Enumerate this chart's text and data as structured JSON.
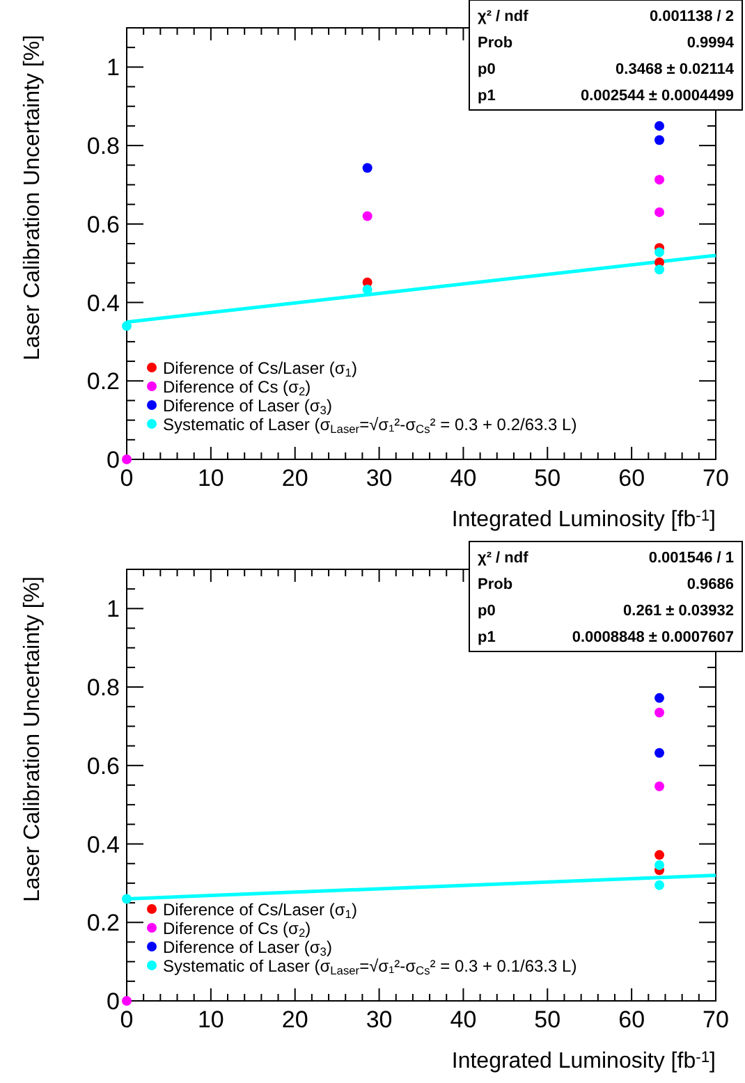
{
  "chart_data": [
    {
      "type": "scatter",
      "xlabel": "Integrated Luminosity [fb$^{-1}$]",
      "ylabel": "Laser Calibration Uncertainty [%]",
      "xlim": [
        0,
        70
      ],
      "ylim": [
        0,
        1.1
      ],
      "xticks": [
        0,
        {
          "value": 2,
          "label": null
        },
        {
          "value": 4,
          "label": null
        },
        {
          "value": 6,
          "label": null
        },
        {
          "value": 8,
          "label": null
        },
        10,
        {
          "value": 12,
          "label": null
        },
        {
          "value": 14,
          "label": null
        },
        {
          "value": 16,
          "label": null
        },
        {
          "value": 18,
          "label": null
        },
        20,
        {
          "value": 22,
          "label": null
        },
        {
          "value": 24,
          "label": null
        },
        {
          "value": 26,
          "label": null
        },
        {
          "value": 28,
          "label": null
        },
        30,
        {
          "value": 32,
          "label": null
        },
        {
          "value": 34,
          "label": null
        },
        {
          "value": 36,
          "label": null
        },
        {
          "value": 38,
          "label": null
        },
        40,
        {
          "value": 42,
          "label": null
        },
        {
          "value": 44,
          "label": null
        },
        {
          "value": 46,
          "label": null
        },
        {
          "value": 48,
          "label": null
        },
        50,
        {
          "value": 52,
          "label": null
        },
        {
          "value": 54,
          "label": null
        },
        {
          "value": 56,
          "label": null
        },
        {
          "value": 58,
          "label": null
        },
        60,
        {
          "value": 62,
          "label": null
        },
        {
          "value": 64,
          "label": null
        },
        {
          "value": 66,
          "label": null
        },
        {
          "value": 68,
          "label": null
        },
        70
      ],
      "yticks": [
        0,
        {
          "value": 0.05,
          "label": null
        },
        {
          "value": 0.1,
          "label": null
        },
        {
          "value": 0.15,
          "label": null
        },
        0.2,
        {
          "value": 0.25,
          "label": null
        },
        {
          "value": 0.3,
          "label": null
        },
        {
          "value": 0.35,
          "label": null
        },
        0.4,
        {
          "value": 0.45,
          "label": null
        },
        {
          "value": 0.5,
          "label": null
        },
        {
          "value": 0.55,
          "label": null
        },
        0.6,
        {
          "value": 0.65,
          "label": null
        },
        {
          "value": 0.7,
          "label": null
        },
        {
          "value": 0.75,
          "label": null
        },
        0.8,
        {
          "value": 0.85,
          "label": null
        },
        {
          "value": 0.9,
          "label": null
        },
        {
          "value": 0.95,
          "label": null
        },
        1,
        {
          "value": 1.05,
          "label": null
        }
      ],
      "grid": false,
      "legend": "bottom left",
      "marker": "circle",
      "series": [
        {
          "name": "Diference of Cs/Laser (σ$_{1}$)",
          "color": "#ff0000",
          "x": [
            28.6,
            63.3,
            63.3
          ],
          "values": [
            0.451,
            0.539,
            0.502
          ]
        },
        {
          "name": "Diference of Cs (σ$_{2}$)",
          "color": "#ff00ff",
          "x": [
            0,
            28.6,
            63.3,
            63.3
          ],
          "values": [
            0,
            0.62,
            0.713,
            0.63
          ]
        },
        {
          "name": "Diference of Laser (σ$_{3}$)",
          "color": "#0000ff",
          "x": [
            28.6,
            63.3,
            63.3
          ],
          "values": [
            0.743,
            0.85,
            0.814
          ]
        },
        {
          "name": "Systematic of Laser (σ$_{Laser}$=√σ₁²-σ$_{Cs}$² = 0.3 + 0.2/63.3 L)",
          "color": "#00ffff",
          "x": [
            0,
            28.6,
            63.3,
            63.3
          ],
          "values": [
            0.34,
            0.433,
            0.528,
            0.484
          ]
        },
        {
          "type": "line",
          "marker": "none",
          "color": "#00ffff",
          "x": [
            0,
            70
          ],
          "values": [
            0.35,
            0.52
          ]
        }
      ],
      "annotations": [
        "χ² / ndf",
        "0.001138 / 2",
        "Prob",
        "0.9994",
        "p0",
        "0.3468 ± 0.02114",
        "p1",
        "0.002544 ± 0.0004499"
      ]
    },
    {
      "type": "scatter",
      "xlabel": "Integrated Luminosity [fb$^{-1}$]",
      "ylabel": "Laser Calibration Uncertainty [%]",
      "xlim": [
        0,
        70
      ],
      "ylim": [
        0,
        1.1
      ],
      "xticks": [
        0,
        {
          "value": 2,
          "label": null
        },
        {
          "value": 4,
          "label": null
        },
        {
          "value": 6,
          "label": null
        },
        {
          "value": 8,
          "label": null
        },
        10,
        {
          "value": 12,
          "label": null
        },
        {
          "value": 14,
          "label": null
        },
        {
          "value": 16,
          "label": null
        },
        {
          "value": 18,
          "label": null
        },
        20,
        {
          "value": 22,
          "label": null
        },
        {
          "value": 24,
          "label": null
        },
        {
          "value": 26,
          "label": null
        },
        {
          "value": 28,
          "label": null
        },
        30,
        {
          "value": 32,
          "label": null
        },
        {
          "value": 34,
          "label": null
        },
        {
          "value": 36,
          "label": null
        },
        {
          "value": 38,
          "label": null
        },
        40,
        {
          "value": 42,
          "label": null
        },
        {
          "value": 44,
          "label": null
        },
        {
          "value": 46,
          "label": null
        },
        {
          "value": 48,
          "label": null
        },
        50,
        {
          "value": 52,
          "label": null
        },
        {
          "value": 54,
          "label": null
        },
        {
          "value": 56,
          "label": null
        },
        {
          "value": 58,
          "label": null
        },
        60,
        {
          "value": 62,
          "label": null
        },
        {
          "value": 64,
          "label": null
        },
        {
          "value": 66,
          "label": null
        },
        {
          "value": 68,
          "label": null
        },
        70
      ],
      "yticks": [
        0,
        {
          "value": 0.05,
          "label": null
        },
        {
          "value": 0.1,
          "label": null
        },
        {
          "value": 0.15,
          "label": null
        },
        0.2,
        {
          "value": 0.25,
          "label": null
        },
        {
          "value": 0.3,
          "label": null
        },
        {
          "value": 0.35,
          "label": null
        },
        0.4,
        {
          "value": 0.45,
          "label": null
        },
        {
          "value": 0.5,
          "label": null
        },
        {
          "value": 0.55,
          "label": null
        },
        0.6,
        {
          "value": 0.65,
          "label": null
        },
        {
          "value": 0.7,
          "label": null
        },
        {
          "value": 0.75,
          "label": null
        },
        0.8,
        {
          "value": 0.85,
          "label": null
        },
        {
          "value": 0.9,
          "label": null
        },
        {
          "value": 0.95,
          "label": null
        },
        1,
        {
          "value": 1.05,
          "label": null
        }
      ],
      "grid": false,
      "legend": "bottom left",
      "marker": "circle",
      "series": [
        {
          "name": "Diference of Cs/Laser (σ$_{1}$)",
          "color": "#ff0000",
          "x": [
            63.3,
            63.3
          ],
          "values": [
            0.372,
            0.333
          ]
        },
        {
          "name": "Diference of Cs (σ$_{2}$)",
          "color": "#ff00ff",
          "x": [
            0,
            63.3,
            63.3
          ],
          "values": [
            0,
            0.735,
            0.547
          ]
        },
        {
          "name": "Diference of Laser (σ$_{3}$)",
          "color": "#0000ff",
          "x": [
            63.3,
            63.3
          ],
          "values": [
            0.772,
            0.632
          ]
        },
        {
          "name": "Systematic of Laser (σ$_{Laser}$=√σ₁²-σ$_{Cs}$² = 0.3 + 0.1/63.3 L)",
          "color": "#00ffff",
          "x": [
            0,
            63.3,
            63.3
          ],
          "values": [
            0.26,
            0.346,
            0.295
          ]
        },
        {
          "type": "line",
          "marker": "none",
          "color": "#00ffff",
          "x": [
            0,
            70
          ],
          "values": [
            0.26,
            0.32
          ]
        }
      ],
      "annotations": [
        "χ² / ndf",
        "0.001546 / 1",
        "Prob",
        "0.9686",
        "p0",
        "0.261 ± 0.03932",
        "p1",
        "0.0008848 ± 0.0007607"
      ]
    }
  ]
}
